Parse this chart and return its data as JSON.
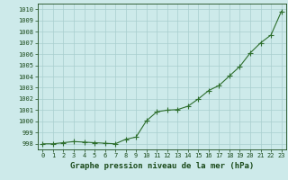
{
  "x": [
    0,
    1,
    2,
    3,
    4,
    5,
    6,
    7,
    8,
    9,
    10,
    11,
    12,
    13,
    14,
    15,
    16,
    17,
    18,
    19,
    20,
    21,
    22,
    23
  ],
  "y": [
    998.0,
    998.0,
    998.1,
    998.2,
    998.15,
    998.1,
    998.05,
    998.0,
    998.4,
    998.6,
    1000.05,
    1000.85,
    1001.0,
    1001.05,
    1001.35,
    1002.0,
    1002.75,
    1003.2,
    1004.05,
    1004.9,
    1006.1,
    1007.0,
    1007.7,
    1009.8
  ],
  "line_color": "#2d6e2d",
  "marker": "P",
  "marker_size": 3,
  "bg_color": "#cdeaea",
  "plot_bg_color": "#cdeaea",
  "grid_color": "#a8cece",
  "xlabel": "Graphe pression niveau de la mer (hPa)",
  "xlabel_color": "#1a4a1a",
  "tick_color": "#1a4a1a",
  "ylim": [
    997.5,
    1010.5
  ],
  "xlim": [
    -0.5,
    23.5
  ],
  "yticks": [
    998,
    999,
    1000,
    1001,
    1002,
    1003,
    1004,
    1005,
    1006,
    1007,
    1008,
    1009,
    1010
  ],
  "xticks": [
    0,
    1,
    2,
    3,
    4,
    5,
    6,
    7,
    8,
    9,
    10,
    11,
    12,
    13,
    14,
    15,
    16,
    17,
    18,
    19,
    20,
    21,
    22,
    23
  ],
  "xlabel_fontsize": 6.5,
  "tick_fontsize": 5,
  "linewidth": 0.8
}
